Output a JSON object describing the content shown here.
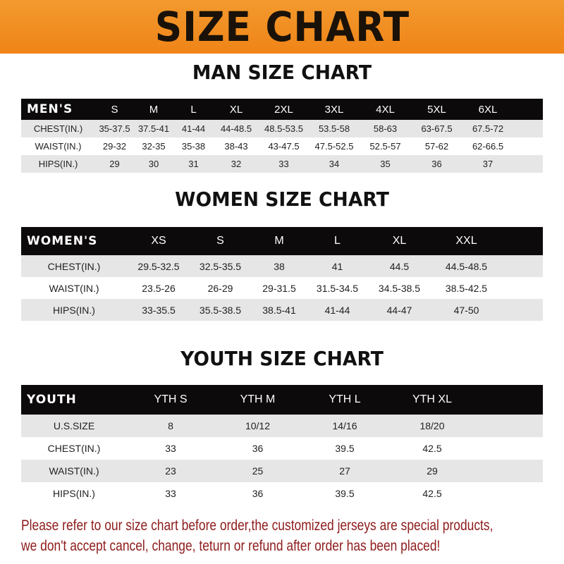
{
  "title": "SIZE CHART",
  "colors": {
    "banner": "#ef8418",
    "header_row": "#0c0a0a",
    "note": "#8e1b1b"
  },
  "men": {
    "title": "MAN SIZE CHART",
    "header": [
      "MEN'S",
      "S",
      "M",
      "L",
      "XL",
      "2XL",
      "3XL",
      "4XL",
      "5XL",
      "6XL"
    ],
    "rows": [
      [
        "CHEST(IN.)",
        "35-37.5",
        "37.5-41",
        "41-44",
        "44-48.5",
        "48.5-53.5",
        "53.5-58",
        "58-63",
        "63-67.5",
        "67.5-72"
      ],
      [
        "WAIST(IN.)",
        "29-32",
        "32-35",
        "35-38",
        "38-43",
        "43-47.5",
        "47.5-52.5",
        "52.5-57",
        "57-62",
        "62-66.5"
      ],
      [
        "HIPS(IN.)",
        "29",
        "30",
        "31",
        "32",
        "33",
        "34",
        "35",
        "36",
        "37"
      ]
    ]
  },
  "women": {
    "title": "WOMEN SIZE CHART",
    "header": [
      "WOMEN'S",
      "XS",
      "S",
      "M",
      "L",
      "XL",
      "XXL"
    ],
    "rows": [
      [
        "CHEST(IN.)",
        "29.5-32.5",
        "32.5-35.5",
        "38",
        "41",
        "44.5",
        "44.5-48.5"
      ],
      [
        "WAIST(IN.)",
        "23.5-26",
        "26-29",
        "29-31.5",
        "31.5-34.5",
        "34.5-38.5",
        "38.5-42.5"
      ],
      [
        "HIPS(IN.)",
        "33-35.5",
        "35.5-38.5",
        "38.5-41",
        "41-44",
        "44-47",
        "47-50"
      ]
    ]
  },
  "youth": {
    "title": "YOUTH SIZE CHART",
    "header": [
      "YOUTH",
      "YTH S",
      "YTH M",
      "YTH L",
      "YTH XL"
    ],
    "rows": [
      [
        "U.S.SIZE",
        "8",
        "10/12",
        "14/16",
        "18/20"
      ],
      [
        "CHEST(IN.)",
        "33",
        "36",
        "39.5",
        "42.5"
      ],
      [
        "WAIST(IN.)",
        "23",
        "25",
        "27",
        "29"
      ],
      [
        "HIPS(IN.)",
        "33",
        "36",
        "39.5",
        "42.5"
      ]
    ]
  },
  "note": [
    "Please refer to our size chart before order,the customized jerseys are special products,",
    "we don't accept cancel, change, teturn or refund after order has been placed!"
  ]
}
